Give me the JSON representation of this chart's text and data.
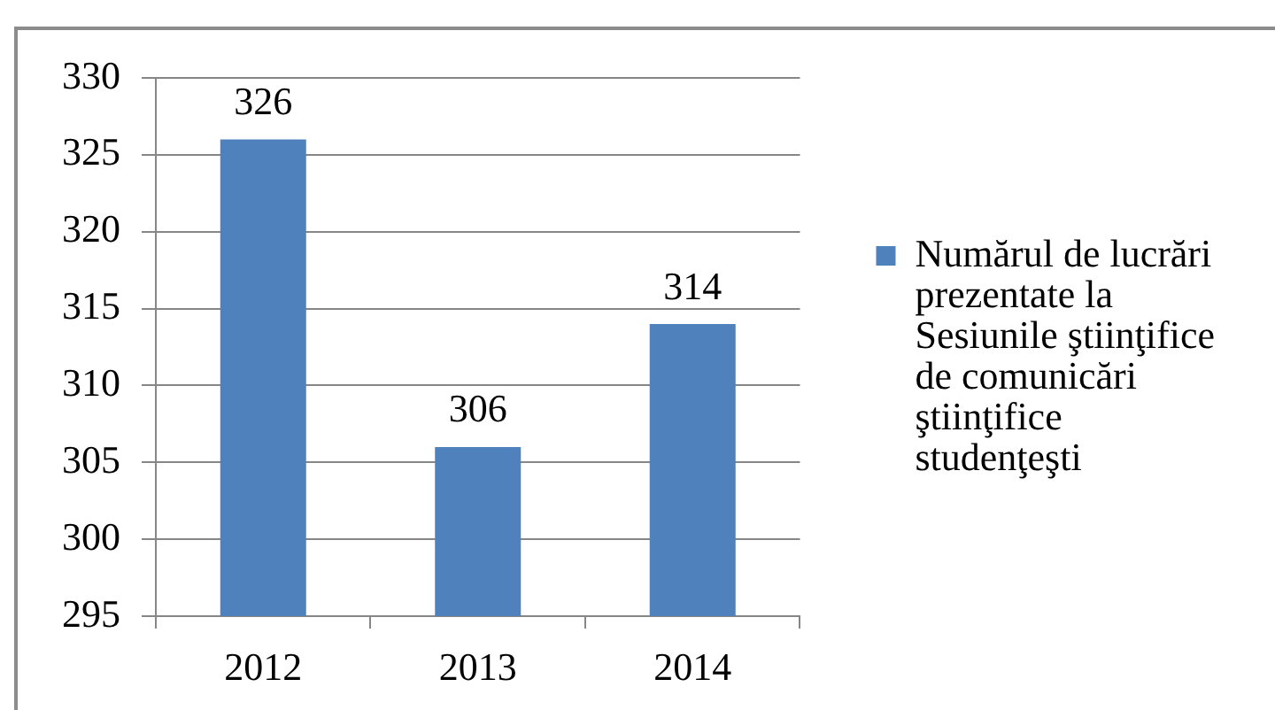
{
  "chart_data": {
    "type": "bar",
    "categories": [
      "2012",
      "2013",
      "2014"
    ],
    "series": [
      {
        "name": "Numărul de lucrări prezentate la Sesiunile ştiinţifice de comunicări ştiinţifice studenţeşti",
        "color": "#4f81bd",
        "values": [
          326,
          306,
          314
        ]
      }
    ],
    "ylim": [
      295,
      330
    ],
    "yticks": [
      295,
      300,
      305,
      310,
      315,
      320,
      325,
      330
    ],
    "grid": "y",
    "legend": "right",
    "data_labels": true
  }
}
